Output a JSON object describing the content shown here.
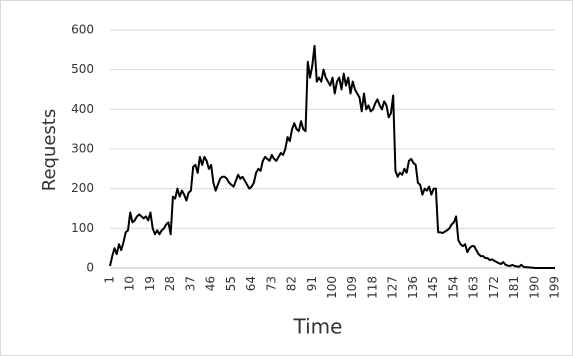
{
  "chart_data": {
    "type": "line",
    "x_label": "Time",
    "y_label": "Requests",
    "color": "#000000",
    "grid": true,
    "ylim": [
      0,
      600
    ],
    "yticks": [
      0,
      100,
      200,
      300,
      400,
      500,
      600
    ],
    "categories": [
      "1",
      null,
      null,
      null,
      null,
      null,
      null,
      null,
      null,
      "10",
      null,
      null,
      null,
      null,
      null,
      null,
      null,
      null,
      "19",
      null,
      null,
      null,
      null,
      null,
      null,
      null,
      null,
      "28",
      null,
      null,
      null,
      null,
      null,
      null,
      null,
      null,
      "37",
      null,
      null,
      null,
      null,
      null,
      null,
      null,
      null,
      "46",
      null,
      null,
      null,
      null,
      null,
      null,
      null,
      null,
      "55",
      null,
      null,
      null,
      null,
      null,
      null,
      null,
      null,
      "64",
      null,
      null,
      null,
      null,
      null,
      null,
      null,
      null,
      "73",
      null,
      null,
      null,
      null,
      null,
      null,
      null,
      null,
      "82",
      null,
      null,
      null,
      null,
      null,
      null,
      null,
      null,
      "91",
      null,
      null,
      null,
      null,
      null,
      null,
      null,
      null,
      "100",
      null,
      null,
      null,
      null,
      null,
      null,
      null,
      null,
      "109",
      null,
      null,
      null,
      null,
      null,
      null,
      null,
      null,
      "118",
      null,
      null,
      null,
      null,
      null,
      null,
      null,
      null,
      "127",
      null,
      null,
      null,
      null,
      null,
      null,
      null,
      null,
      "136",
      null,
      null,
      null,
      null,
      null,
      null,
      null,
      null,
      "145",
      null,
      null,
      null,
      null,
      null,
      null,
      null,
      null,
      "154",
      null,
      null,
      null,
      null,
      null,
      null,
      null,
      null,
      "163",
      null,
      null,
      null,
      null,
      null,
      null,
      null,
      null,
      "172",
      null,
      null,
      null,
      null,
      null,
      null,
      null,
      null,
      "181",
      null,
      null,
      null,
      null,
      null,
      null,
      null,
      null,
      "190",
      null,
      null,
      null,
      null,
      null,
      null,
      null,
      null,
      "199"
    ],
    "values": [
      5,
      30,
      50,
      35,
      60,
      45,
      65,
      90,
      95,
      140,
      115,
      120,
      130,
      135,
      130,
      125,
      130,
      120,
      140,
      100,
      85,
      95,
      85,
      95,
      100,
      110,
      115,
      85,
      180,
      175,
      200,
      180,
      195,
      185,
      170,
      190,
      195,
      255,
      260,
      240,
      280,
      260,
      280,
      270,
      250,
      260,
      215,
      195,
      210,
      225,
      230,
      230,
      225,
      215,
      210,
      205,
      220,
      235,
      225,
      230,
      220,
      210,
      200,
      205,
      215,
      240,
      250,
      245,
      270,
      280,
      275,
      270,
      285,
      275,
      270,
      280,
      290,
      285,
      300,
      330,
      320,
      350,
      365,
      350,
      345,
      370,
      350,
      345,
      520,
      480,
      510,
      560,
      470,
      480,
      470,
      500,
      480,
      470,
      460,
      480,
      440,
      470,
      480,
      450,
      490,
      460,
      480,
      440,
      470,
      450,
      440,
      430,
      395,
      440,
      400,
      410,
      395,
      400,
      415,
      425,
      410,
      400,
      420,
      410,
      380,
      390,
      435,
      245,
      230,
      240,
      235,
      250,
      240,
      270,
      275,
      265,
      260,
      215,
      210,
      185,
      200,
      195,
      205,
      185,
      200,
      200,
      90,
      90,
      88,
      92,
      95,
      100,
      110,
      115,
      130,
      70,
      60,
      55,
      60,
      40,
      50,
      55,
      55,
      45,
      35,
      30,
      30,
      25,
      25,
      20,
      22,
      18,
      15,
      12,
      10,
      15,
      8,
      6,
      5,
      8,
      5,
      4,
      3,
      8,
      3,
      2,
      2,
      1,
      1,
      0,
      0,
      0,
      0,
      0,
      0,
      0,
      0,
      0,
      0
    ]
  }
}
